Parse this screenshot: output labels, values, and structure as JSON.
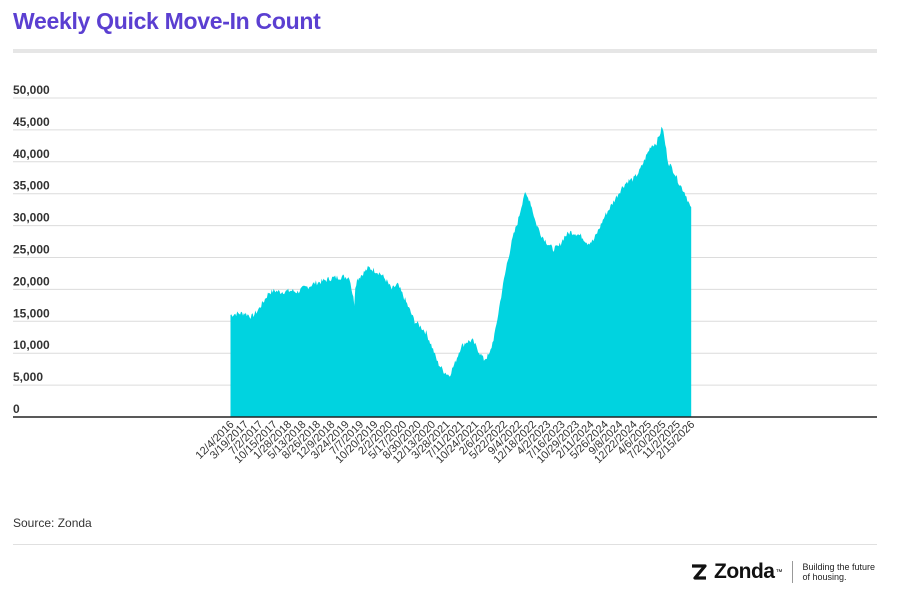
{
  "title": "Weekly Quick Move-In Count",
  "source": "Source: Zonda",
  "brand": {
    "name": "Zonda",
    "tagline_line1": "Building the future",
    "tagline_line2": "of housing.",
    "logo_icon": "zonda-z-icon"
  },
  "colors": {
    "title": "#5b3fd1",
    "area": "#00d3e0",
    "grid": "#dcdcdc",
    "axis": "#222222"
  },
  "chart_data": {
    "type": "area",
    "title": "Weekly Quick Move-In Count",
    "xlabel": "",
    "ylabel": "",
    "ylim": [
      0,
      50000
    ],
    "yticks": [
      0,
      5000,
      10000,
      15000,
      20000,
      25000,
      30000,
      35000,
      40000,
      45000,
      50000
    ],
    "ytick_labels": [
      "0",
      "5,000",
      "10,000",
      "15,000",
      "20,000",
      "25,000",
      "30,000",
      "35,000",
      "40,000",
      "45,000",
      "50,000"
    ],
    "xlim": [
      "2012-08-01",
      "2029-11-01"
    ],
    "xtick_labels": [
      "12/4/2016",
      "3/19/2017",
      "7/2/2017",
      "10/15/2017",
      "1/28/2018",
      "5/13/2018",
      "8/26/2018",
      "12/9/2018",
      "3/24/2019",
      "7/7/2019",
      "10/20/2019",
      "2/2/2020",
      "5/17/2020",
      "8/30/2020",
      "12/13/2020",
      "3/28/2021",
      "7/11/2021",
      "10/24/2021",
      "2/6/2022",
      "5/22/2022",
      "9/4/2022",
      "12/18/2022",
      "4/2/2023",
      "7/16/2023",
      "10/29/2023",
      "2/11/2024",
      "5/26/2024",
      "9/8/2024",
      "12/22/2024",
      "4/6/2025",
      "7/20/2025",
      "11/2/2025",
      "2/15/2026"
    ],
    "grid": true,
    "x": [
      "2016-12-04",
      "2017-01-15",
      "2017-03-19",
      "2017-05-07",
      "2017-06-18",
      "2017-07-30",
      "2017-09-10",
      "2017-10-22",
      "2017-12-03",
      "2018-01-14",
      "2018-02-25",
      "2018-04-08",
      "2018-05-20",
      "2018-07-01",
      "2018-08-12",
      "2018-09-23",
      "2018-11-04",
      "2018-12-16",
      "2019-01-27",
      "2019-03-10",
      "2019-04-21",
      "2019-05-26",
      "2019-06-02",
      "2019-06-16",
      "2019-07-28",
      "2019-09-08",
      "2019-10-20",
      "2019-12-01",
      "2020-01-12",
      "2020-02-23",
      "2020-04-05",
      "2020-05-17",
      "2020-06-28",
      "2020-08-09",
      "2020-09-20",
      "2020-11-01",
      "2020-12-13",
      "2021-01-24",
      "2021-03-07",
      "2021-04-18",
      "2021-05-30",
      "2021-07-11",
      "2021-08-22",
      "2021-10-03",
      "2021-11-14",
      "2021-12-26",
      "2022-02-06",
      "2022-03-20",
      "2022-05-01",
      "2022-06-12",
      "2022-07-24",
      "2022-09-04",
      "2022-10-16",
      "2022-11-27",
      "2023-01-08",
      "2023-02-19",
      "2023-04-02",
      "2023-05-14",
      "2023-06-25",
      "2023-08-06",
      "2023-09-17",
      "2023-10-29",
      "2023-12-10",
      "2024-01-21",
      "2024-03-03",
      "2024-04-14",
      "2024-05-26",
      "2024-07-07",
      "2024-08-18",
      "2024-09-29",
      "2024-11-10",
      "2024-12-22",
      "2025-02-02",
      "2025-03-16",
      "2025-04-27",
      "2025-06-08",
      "2025-07-20",
      "2025-08-31",
      "2025-10-12",
      "2025-11-23",
      "2026-01-04",
      "2026-02-15"
    ],
    "series": [
      {
        "values": [
          16000,
          16200,
          16300,
          15700,
          16600,
          18000,
          19500,
          19800,
          19600,
          19700,
          19800,
          19600,
          20200,
          20500,
          21000,
          21200,
          21500,
          21800,
          21900,
          22000,
          21900,
          17800,
          20500,
          21600,
          22500,
          23400,
          23000,
          22500,
          21500,
          20000,
          20800,
          19000,
          17000,
          15000,
          14200,
          13200,
          11000,
          8500,
          7200,
          6500,
          8500,
          11000,
          11800,
          12000,
          10500,
          9000,
          9800,
          13500,
          19000,
          24000,
          28000,
          31000,
          35000,
          34000,
          30500,
          28500,
          27300,
          26300,
          26700,
          28300,
          29000,
          28800,
          28300,
          27300,
          27600,
          29500,
          31500,
          33000,
          34500,
          36000,
          37000,
          37300,
          38500,
          40500,
          42500,
          43000,
          45500,
          40000,
          38500,
          36500,
          35000,
          32500
        ]
      }
    ]
  }
}
